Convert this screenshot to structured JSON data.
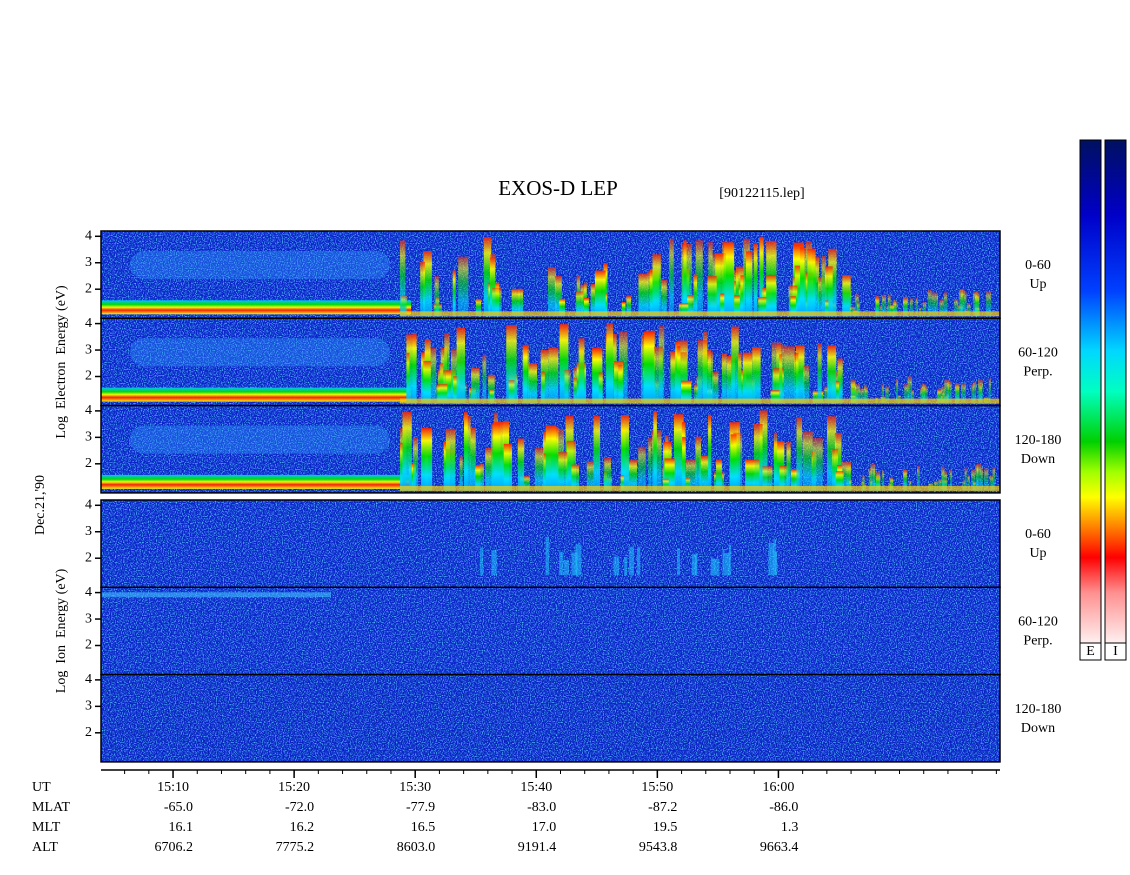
{
  "chart_data": {
    "type": "spectrogram",
    "title": "EXOS-D LEP",
    "subtitle": "[90122115.lep]",
    "date_label": "Dec.21,'90",
    "xlabel": "UT",
    "xlim": [
      904.05,
      978.3
    ],
    "xticks": [
      {
        "value": 910,
        "label": "15:10"
      },
      {
        "value": 920,
        "label": "15:20"
      },
      {
        "value": 930,
        "label": "15:30"
      },
      {
        "value": 940,
        "label": "15:40"
      },
      {
        "value": 950,
        "label": "15:50"
      },
      {
        "value": 960,
        "label": "16:00"
      }
    ],
    "groups": [
      {
        "ylabel": "Log  Electron  Energy (eV)",
        "kind": "electron",
        "panels": [
          {
            "label": [
              "0-60",
              "Up"
            ],
            "ylim": [
              0.9,
              4.2
            ],
            "yticks": [
              2,
              3,
              4
            ]
          },
          {
            "label": [
              "60-120",
              "Perp."
            ],
            "ylim": [
              0.9,
              4.2
            ],
            "yticks": [
              2,
              3,
              4
            ]
          },
          {
            "label": [
              "120-180",
              "Down"
            ],
            "ylim": [
              0.9,
              4.2
            ],
            "yticks": [
              2,
              3,
              4
            ]
          }
        ]
      },
      {
        "ylabel": "Log  Ion  Energy (eV)",
        "kind": "ion",
        "panels": [
          {
            "label": [
              "0-60",
              "Up"
            ],
            "ylim": [
              0.9,
              4.2
            ],
            "yticks": [
              2,
              3,
              4
            ]
          },
          {
            "label": [
              "60-120",
              "Perp."
            ],
            "ylim": [
              0.9,
              4.2
            ],
            "yticks": [
              2,
              3,
              4
            ]
          },
          {
            "label": [
              "120-180",
              "Down"
            ],
            "ylim": [
              0.9,
              4.2
            ],
            "yticks": [
              2,
              3,
              4
            ]
          }
        ]
      }
    ],
    "table": [
      {
        "label": "MLAT",
        "values": [
          "-65.0",
          "-72.0",
          "-77.9",
          "-83.0",
          "-87.2",
          "-86.0"
        ]
      },
      {
        "label": "MLT",
        "values": [
          "16.1",
          "16.2",
          "16.5",
          "17.0",
          "19.5",
          "1.3"
        ]
      },
      {
        "label": "ALT",
        "values": [
          "6706.2",
          "7775.2",
          "8603.0",
          "9191.4",
          "9543.8",
          "9663.4"
        ]
      }
    ],
    "colorbars": [
      "E",
      "I"
    ]
  }
}
